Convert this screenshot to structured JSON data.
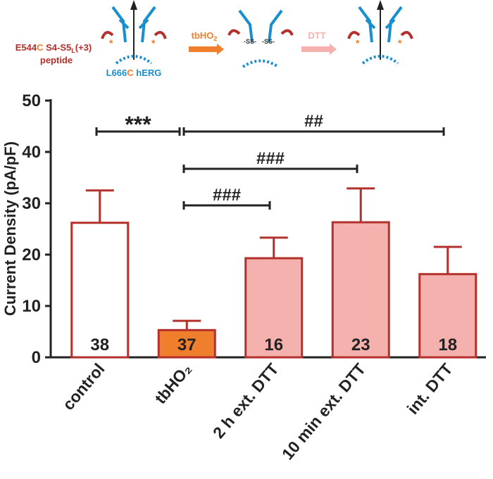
{
  "chart_data": {
    "type": "bar",
    "ylabel": "Current Density (pA/pF)",
    "categories": [
      "control",
      "tbHO₂",
      "2 h ext. DTT",
      "10 min ext. DTT",
      "int. DTT"
    ],
    "values": [
      26.2,
      5.3,
      19.3,
      26.3,
      16.2
    ],
    "errors": [
      6.3,
      1.8,
      4.0,
      6.6,
      5.3
    ],
    "n_labels": [
      "38",
      "37",
      "16",
      "23",
      "18"
    ],
    "colors": [
      "#ffffff",
      "#ef7f2d",
      "#f4b1ae",
      "#f4b1ae",
      "#f4b1ae"
    ],
    "edge_color": "#b3302c",
    "ylim": [
      0,
      50
    ],
    "yticks": [
      0,
      10,
      20,
      30,
      40,
      50
    ],
    "annotations": [
      "***",
      "##",
      "###",
      "###"
    ]
  },
  "schematic": {
    "peptide_label": [
      "E544",
      "C",
      " S4-S5",
      "L",
      "(+3)"
    ],
    "peptide_label_line2": "peptide",
    "channel_label": [
      "L666",
      "C",
      " hERG"
    ],
    "oxidant": [
      "tbHO",
      "2"
    ],
    "reducer": "DTT"
  }
}
